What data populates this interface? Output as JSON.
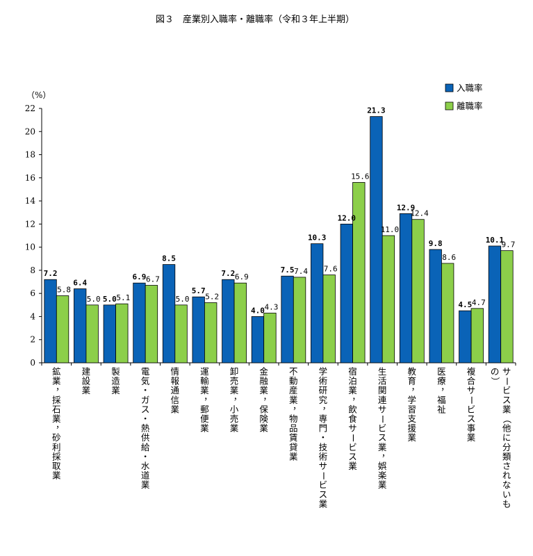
{
  "chart_data": {
    "type": "bar",
    "title": "図３　産業別入職率・離職率（令和３年上半期）",
    "ylabel": "（%）",
    "ylim": [
      0,
      22
    ],
    "yticks": [
      0,
      2,
      4,
      6,
      8,
      10,
      12,
      14,
      16,
      18,
      20,
      22
    ],
    "grid": false,
    "legend_position": "top-right",
    "colors": {
      "入職率": "#0a63b7",
      "離職率": "#8ccf4a",
      "border": "#000000"
    },
    "categories": [
      "鉱業，採石業，砂利採取業",
      "建設業",
      "製造業",
      "電気・ガス・熱供給・水道業",
      "情報通信業",
      "運輸業，郵便業",
      "卸売業，小売業",
      "金融業，保険業",
      "不動産業，物品賃貸業",
      "学術研究，専門・技術サービス業",
      "宿泊業，飲食サービス業",
      "生活関連サービス業，娯楽業",
      "教育，学習支援業",
      "医療，福祉",
      "複合サービス事業",
      "サービス業（他に分類されないもの）"
    ],
    "series": [
      {
        "name": "入職率",
        "values": [
          7.2,
          6.4,
          5.0,
          6.9,
          8.5,
          5.7,
          7.2,
          4.0,
          7.5,
          10.3,
          12.0,
          21.3,
          12.9,
          9.8,
          4.5,
          10.1
        ]
      },
      {
        "name": "離職率",
        "values": [
          5.8,
          5.0,
          5.1,
          6.7,
          5.0,
          5.2,
          6.9,
          4.3,
          7.4,
          7.6,
          15.6,
          11.0,
          12.4,
          8.6,
          4.7,
          9.7
        ]
      }
    ]
  }
}
